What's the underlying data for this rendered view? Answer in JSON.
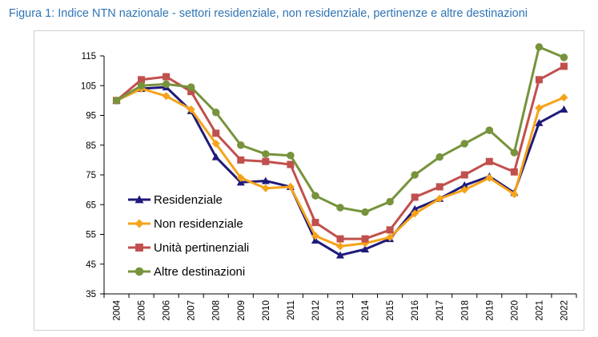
{
  "figure": {
    "caption": "Figura 1: Indice NTN nazionale - settori residenziale, non residenziale, pertinenze e altre destinazioni"
  },
  "chart_data": {
    "type": "line",
    "title": "",
    "xlabel": "",
    "ylabel": "",
    "ylim": [
      35,
      115
    ],
    "yticks": [
      35,
      45,
      55,
      65,
      75,
      85,
      95,
      105,
      115
    ],
    "categories": [
      "2004",
      "2005",
      "2006",
      "2007",
      "2008",
      "2009",
      "2010",
      "2011",
      "2012",
      "2013",
      "2014",
      "2015",
      "2016",
      "2017",
      "2018",
      "2019",
      "2020",
      "2021",
      "2022"
    ],
    "grid": false,
    "legend_position": "inside-left",
    "series": [
      {
        "name": "Residenziale",
        "color": "#1f1a7a",
        "marker": "triangle",
        "values": [
          100,
          104,
          104.5,
          96.5,
          81,
          72.5,
          73,
          71,
          53,
          48,
          50,
          53.5,
          63.5,
          67,
          71.5,
          74.5,
          69,
          92.5,
          97
        ]
      },
      {
        "name": "Non residenziale",
        "color": "#f5a31a",
        "marker": "diamond",
        "values": [
          100,
          104,
          101.5,
          97,
          85.5,
          74,
          70.5,
          71,
          54.5,
          51,
          52,
          54,
          62,
          67,
          70,
          74,
          68.5,
          97.5,
          101
        ]
      },
      {
        "name": "Unità pertinenziali",
        "color": "#c0504d",
        "marker": "square",
        "values": [
          100,
          107,
          108,
          103,
          89,
          80,
          79.5,
          78.5,
          59,
          53.5,
          53.5,
          56.5,
          67.5,
          71,
          75,
          79.5,
          76,
          107,
          111.5
        ]
      },
      {
        "name": "Altre destinazioni",
        "color": "#77933c",
        "marker": "circle",
        "values": [
          100,
          105,
          105.5,
          104.5,
          96,
          85,
          82,
          81.5,
          68,
          64,
          62.5,
          66,
          75,
          81,
          85.5,
          90,
          82.5,
          118,
          114.5
        ]
      }
    ]
  }
}
